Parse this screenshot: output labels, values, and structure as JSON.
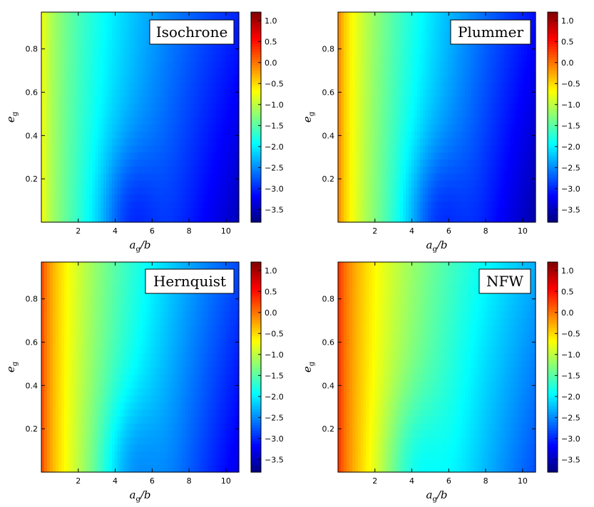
{
  "chart_data": [
    {
      "type": "heatmap",
      "title": "Isochrone",
      "xlabel": "a_g/b",
      "ylabel": "e_g",
      "xticks": [
        "2",
        "4",
        "6",
        "8",
        "10"
      ],
      "yticks": [
        "0.2",
        "0.4",
        "0.6",
        "0.8"
      ],
      "xlim": [
        0,
        10.7
      ],
      "ylim": [
        0,
        0.97
      ],
      "colorbar": {
        "range": [
          -3.8,
          1.2
        ],
        "ticks": [
          "1.0",
          "0.5",
          "0.0",
          "−0.5",
          "−1.0",
          "−1.5",
          "−2.0",
          "−2.5",
          "−3.0",
          "−3.5"
        ]
      },
      "field": {
        "left": -0.6,
        "right": -3.5,
        "dip_x": 4.7,
        "dip_depth": 0.55
      }
    },
    {
      "type": "heatmap",
      "title": "Plummer",
      "xlabel": "a_g/b",
      "ylabel": "e_g",
      "xticks": [
        "2",
        "4",
        "6",
        "8",
        "10"
      ],
      "yticks": [
        "0.2",
        "0.4",
        "0.6",
        "0.8"
      ],
      "xlim": [
        0,
        10.7
      ],
      "ylim": [
        0,
        0.97
      ],
      "colorbar": {
        "range": [
          -3.8,
          1.2
        ],
        "ticks": [
          "1.0",
          "0.5",
          "0.0",
          "−0.5",
          "−1.0",
          "−1.5",
          "−2.0",
          "−2.5",
          "−3.0",
          "−3.5"
        ]
      },
      "field": {
        "left": 0.05,
        "right": -3.6,
        "dip_x": 5.2,
        "dip_depth": 0.55
      }
    },
    {
      "type": "heatmap",
      "title": "Hernquist",
      "xlabel": "a_g/b",
      "ylabel": "e_g",
      "xticks": [
        "2",
        "4",
        "6",
        "8",
        "10"
      ],
      "yticks": [
        "0.2",
        "0.4",
        "0.6",
        "0.8"
      ],
      "xlim": [
        0,
        10.7
      ],
      "ylim": [
        0,
        0.97
      ],
      "colorbar": {
        "range": [
          -3.8,
          1.2
        ],
        "ticks": [
          "1.0",
          "0.5",
          "0.0",
          "−0.5",
          "−1.0",
          "−1.5",
          "−2.0",
          "−2.5",
          "−3.0",
          "−3.5"
        ]
      },
      "field": {
        "left": 0.35,
        "right": -3.3,
        "dip_x": 4.7,
        "dip_depth": 0.5
      }
    },
    {
      "type": "heatmap",
      "title": "NFW",
      "xlabel": "a_g/b",
      "ylabel": "e_g",
      "xticks": [
        "2",
        "4",
        "6",
        "8",
        "10"
      ],
      "yticks": [
        "0.2",
        "0.4",
        "0.6",
        "0.8"
      ],
      "xlim": [
        0,
        10.7
      ],
      "ylim": [
        0,
        0.97
      ],
      "colorbar": {
        "range": [
          -3.8,
          1.2
        ],
        "ticks": [
          "1.0",
          "0.5",
          "0.0",
          "−0.5",
          "−1.0",
          "−1.5",
          "−2.0",
          "−2.5",
          "−3.0",
          "−3.5"
        ]
      },
      "field": {
        "left": 0.45,
        "right": -2.8,
        "dip_x": 4.0,
        "dip_depth": 0.45
      }
    }
  ]
}
